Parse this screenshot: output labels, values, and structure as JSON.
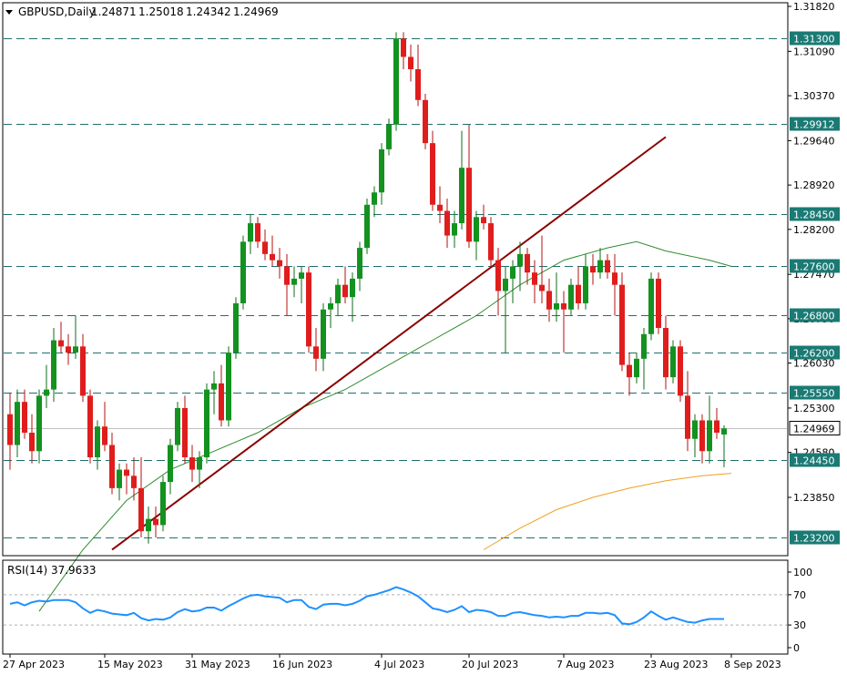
{
  "chart_data": {
    "type": "candlestick",
    "header": {
      "symbol_tf": "GBPUSD,Daily",
      "open": "1.24871",
      "high": "1.25018",
      "low": "1.24342",
      "close": "1.24969"
    },
    "price_axis": {
      "ticks": [
        "1.31820",
        "1.31090",
        "1.30370",
        "1.29640",
        "1.28920",
        "1.28200",
        "1.27470",
        "1.26750",
        "1.26030",
        "1.25300",
        "1.24580",
        "1.23850"
      ]
    },
    "horizontal_levels": [
      {
        "value": 1.313,
        "label": "1.31300"
      },
      {
        "value": 1.29912,
        "label": "1.29912"
      },
      {
        "value": 1.2845,
        "label": "1.28450"
      },
      {
        "value": 1.276,
        "label": "1.27600"
      },
      {
        "value": 1.268,
        "label": "1.26800"
      },
      {
        "value": 1.262,
        "label": "1.26200"
      },
      {
        "value": 1.2555,
        "label": "1.25550"
      },
      {
        "value": 1.2445,
        "label": "1.24450"
      },
      {
        "value": 1.232,
        "label": "1.23200"
      }
    ],
    "current_price": {
      "value": 1.24969,
      "label": "1.24969"
    },
    "time_axis": {
      "labels": [
        {
          "bar": 0,
          "label": "27 Apr 2023"
        },
        {
          "bar": 13,
          "label": "15 May 2023"
        },
        {
          "bar": 25,
          "label": "31 May 2023"
        },
        {
          "bar": 37,
          "label": "16 Jun 2023"
        },
        {
          "bar": 51,
          "label": "4 Jul 2023"
        },
        {
          "bar": 63,
          "label": "20 Jul 2023"
        },
        {
          "bar": 76,
          "label": "7 Aug 2023"
        },
        {
          "bar": 88,
          "label": "23 Aug 2023"
        },
        {
          "bar": 99,
          "label": "8 Sep 2023"
        }
      ]
    },
    "candles": [
      [
        1.252,
        1.2555,
        1.243,
        1.247
      ],
      [
        1.247,
        1.256,
        1.245,
        1.254
      ],
      [
        1.254,
        1.256,
        1.248,
        1.249
      ],
      [
        1.249,
        1.252,
        1.244,
        1.246
      ],
      [
        1.246,
        1.256,
        1.244,
        1.255
      ],
      [
        1.255,
        1.26,
        1.253,
        1.256
      ],
      [
        1.256,
        1.266,
        1.254,
        1.264
      ],
      [
        1.264,
        1.267,
        1.262,
        1.263
      ],
      [
        1.263,
        1.265,
        1.26,
        1.262
      ],
      [
        1.262,
        1.268,
        1.261,
        1.263
      ],
      [
        1.263,
        1.265,
        1.254,
        1.255
      ],
      [
        1.255,
        1.256,
        1.244,
        1.245
      ],
      [
        1.245,
        1.251,
        1.243,
        1.25
      ],
      [
        1.25,
        1.254,
        1.246,
        1.247
      ],
      [
        1.247,
        1.249,
        1.239,
        1.24
      ],
      [
        1.24,
        1.244,
        1.238,
        1.243
      ],
      [
        1.243,
        1.244,
        1.239,
        1.242
      ],
      [
        1.242,
        1.245,
        1.238,
        1.24
      ],
      [
        1.24,
        1.245,
        1.232,
        1.233
      ],
      [
        1.233,
        1.237,
        1.231,
        1.235
      ],
      [
        1.235,
        1.237,
        1.232,
        1.234
      ],
      [
        1.234,
        1.242,
        1.233,
        1.241
      ],
      [
        1.241,
        1.248,
        1.239,
        1.247
      ],
      [
        1.247,
        1.254,
        1.246,
        1.253
      ],
      [
        1.253,
        1.255,
        1.244,
        1.245
      ],
      [
        1.245,
        1.247,
        1.241,
        1.243
      ],
      [
        1.243,
        1.246,
        1.24,
        1.245
      ],
      [
        1.245,
        1.257,
        1.244,
        1.256
      ],
      [
        1.256,
        1.259,
        1.252,
        1.257
      ],
      [
        1.257,
        1.26,
        1.25,
        1.251
      ],
      [
        1.251,
        1.263,
        1.25,
        1.262
      ],
      [
        1.262,
        1.271,
        1.261,
        1.27
      ],
      [
        1.27,
        1.281,
        1.269,
        1.28
      ],
      [
        1.28,
        1.2845,
        1.278,
        1.283
      ],
      [
        1.283,
        1.284,
        1.279,
        1.28
      ],
      [
        1.28,
        1.282,
        1.277,
        1.278
      ],
      [
        1.278,
        1.281,
        1.276,
        1.277
      ],
      [
        1.277,
        1.279,
        1.274,
        1.276
      ],
      [
        1.276,
        1.278,
        1.268,
        1.273
      ],
      [
        1.273,
        1.276,
        1.271,
        1.274
      ],
      [
        1.274,
        1.276,
        1.27,
        1.275
      ],
      [
        1.275,
        1.276,
        1.262,
        1.263
      ],
      [
        1.263,
        1.266,
        1.259,
        1.261
      ],
      [
        1.261,
        1.27,
        1.259,
        1.269
      ],
      [
        1.269,
        1.271,
        1.266,
        1.27
      ],
      [
        1.27,
        1.274,
        1.268,
        1.273
      ],
      [
        1.273,
        1.276,
        1.27,
        1.271
      ],
      [
        1.271,
        1.275,
        1.267,
        1.274
      ],
      [
        1.274,
        1.28,
        1.272,
        1.279
      ],
      [
        1.279,
        1.287,
        1.278,
        1.286
      ],
      [
        1.286,
        1.289,
        1.284,
        1.288
      ],
      [
        1.288,
        1.296,
        1.286,
        1.295
      ],
      [
        1.295,
        1.3,
        1.294,
        1.299
      ],
      [
        1.299,
        1.314,
        1.298,
        1.313
      ],
      [
        1.313,
        1.314,
        1.308,
        1.31
      ],
      [
        1.31,
        1.312,
        1.306,
        1.308
      ],
      [
        1.308,
        1.312,
        1.302,
        1.303
      ],
      [
        1.303,
        1.304,
        1.295,
        1.296
      ],
      [
        1.296,
        1.298,
        1.285,
        1.286
      ],
      [
        1.286,
        1.289,
        1.283,
        1.285
      ],
      [
        1.285,
        1.287,
        1.279,
        1.281
      ],
      [
        1.281,
        1.285,
        1.279,
        1.283
      ],
      [
        1.283,
        1.298,
        1.282,
        1.292
      ],
      [
        1.292,
        1.299,
        1.279,
        1.28
      ],
      [
        1.28,
        1.285,
        1.277,
        1.284
      ],
      [
        1.284,
        1.286,
        1.282,
        1.283
      ],
      [
        1.283,
        1.284,
        1.276,
        1.277
      ],
      [
        1.277,
        1.279,
        1.268,
        1.272
      ],
      [
        1.272,
        1.276,
        1.262,
        1.274
      ],
      [
        1.274,
        1.277,
        1.27,
        1.276
      ],
      [
        1.276,
        1.28,
        1.272,
        1.278
      ],
      [
        1.278,
        1.279,
        1.273,
        1.275
      ],
      [
        1.275,
        1.277,
        1.27,
        1.273
      ],
      [
        1.273,
        1.281,
        1.27,
        1.272
      ],
      [
        1.272,
        1.274,
        1.267,
        1.269
      ],
      [
        1.269,
        1.275,
        1.267,
        1.27
      ],
      [
        1.27,
        1.272,
        1.262,
        1.269
      ],
      [
        1.269,
        1.274,
        1.268,
        1.273
      ],
      [
        1.273,
        1.276,
        1.269,
        1.27
      ],
      [
        1.27,
        1.278,
        1.269,
        1.276
      ],
      [
        1.276,
        1.278,
        1.273,
        1.275
      ],
      [
        1.275,
        1.279,
        1.274,
        1.277
      ],
      [
        1.277,
        1.278,
        1.274,
        1.275
      ],
      [
        1.275,
        1.278,
        1.268,
        1.273
      ],
      [
        1.273,
        1.275,
        1.259,
        1.26
      ],
      [
        1.26,
        1.262,
        1.255,
        1.258
      ],
      [
        1.258,
        1.262,
        1.257,
        1.261
      ],
      [
        1.261,
        1.266,
        1.256,
        1.265
      ],
      [
        1.265,
        1.275,
        1.264,
        1.274
      ],
      [
        1.274,
        1.275,
        1.265,
        1.266
      ],
      [
        1.266,
        1.268,
        1.256,
        1.258
      ],
      [
        1.258,
        1.264,
        1.257,
        1.263
      ],
      [
        1.263,
        1.264,
        1.254,
        1.255
      ],
      [
        1.255,
        1.259,
        1.246,
        1.248
      ],
      [
        1.248,
        1.252,
        1.245,
        1.251
      ],
      [
        1.251,
        1.252,
        1.244,
        1.246
      ],
      [
        1.246,
        1.255,
        1.244,
        1.251
      ],
      [
        1.251,
        1.253,
        1.248,
        1.249
      ],
      [
        1.2487,
        1.2502,
        1.2434,
        1.2497
      ]
    ],
    "moving_averages": [
      {
        "color": "#2e8b2e",
        "points": [
          [
            4,
            1.22
          ],
          [
            10,
            1.23
          ],
          [
            16,
            1.238
          ],
          [
            22,
            1.243
          ],
          [
            28,
            1.246
          ],
          [
            34,
            1.249
          ],
          [
            40,
            1.253
          ],
          [
            46,
            1.256
          ],
          [
            52,
            1.26
          ],
          [
            58,
            1.264
          ],
          [
            64,
            1.268
          ],
          [
            70,
            1.273
          ],
          [
            76,
            1.277
          ],
          [
            82,
            1.279
          ],
          [
            86,
            1.28
          ],
          [
            90,
            1.2785
          ],
          [
            96,
            1.277
          ],
          [
            99,
            1.276
          ]
        ]
      },
      {
        "color": "#f0a020",
        "points": [
          [
            65,
            1.23
          ],
          [
            70,
            1.2335
          ],
          [
            75,
            1.2365
          ],
          [
            80,
            1.2385
          ],
          [
            85,
            1.24
          ],
          [
            90,
            1.2412
          ],
          [
            95,
            1.242
          ],
          [
            99,
            1.2424
          ]
        ]
      }
    ],
    "trendline": {
      "color": "#8b0000",
      "from": [
        14,
        1.23
      ],
      "to": [
        90,
        1.297
      ]
    },
    "rsi": {
      "label": "RSI(14) 37.9633",
      "ticks": [
        "100",
        "70",
        "30",
        "0"
      ],
      "levels": [
        70,
        30
      ],
      "range": [
        0,
        100
      ],
      "values": [
        58,
        60,
        56,
        60,
        62,
        61,
        63,
        63,
        63,
        60,
        52,
        46,
        50,
        48,
        45,
        44,
        43,
        46,
        39,
        36,
        38,
        37,
        40,
        47,
        51,
        48,
        49,
        53,
        53,
        49,
        55,
        60,
        65,
        69,
        70,
        68,
        67,
        66,
        60,
        63,
        63,
        54,
        51,
        57,
        58,
        58,
        56,
        58,
        62,
        68,
        70,
        73,
        76,
        80,
        77,
        73,
        68,
        60,
        52,
        50,
        47,
        50,
        55,
        47,
        50,
        49,
        47,
        42,
        42,
        46,
        47,
        45,
        43,
        42,
        40,
        41,
        40,
        42,
        42,
        46,
        46,
        45,
        46,
        43,
        32,
        31,
        34,
        40,
        48,
        42,
        37,
        40,
        37,
        34,
        33,
        36,
        38,
        38,
        38
      ]
    }
  }
}
